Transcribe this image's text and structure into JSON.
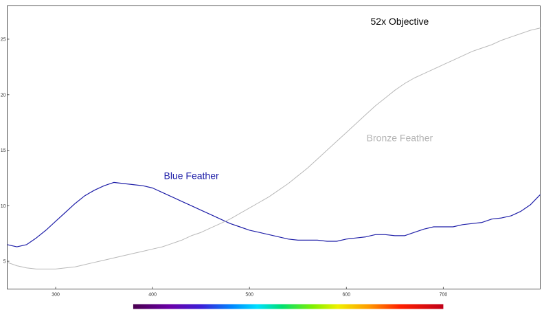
{
  "chart_data": {
    "type": "line",
    "title": "",
    "xlabel": "",
    "ylabel": "",
    "xlim": [
      250,
      800
    ],
    "ylim": [
      2.5,
      28
    ],
    "grid": false,
    "x_ticks": [
      300,
      400,
      500,
      600,
      700
    ],
    "y_ticks": [
      5,
      10,
      15,
      20,
      25
    ],
    "x_tick_labels": [
      "300",
      "400",
      "500",
      "600",
      "700"
    ],
    "y_tick_labels": [
      "5",
      "10",
      "15",
      "20",
      "25"
    ],
    "annotations": [
      {
        "text": "52x Objective",
        "x": 655,
        "y": 26.3,
        "color": "#000000"
      },
      {
        "text": "Blue Feather",
        "x": 440,
        "y": 12.4,
        "color": "#1a1aa6"
      },
      {
        "text": "Bronze Feather",
        "x": 655,
        "y": 15.8,
        "color": "#b4b4b4"
      }
    ],
    "spectrum_bar": {
      "from": 380,
      "to": 700
    },
    "series": [
      {
        "color": "#1f1fa8",
        "x": [
          250,
          260,
          270,
          280,
          290,
          300,
          310,
          320,
          330,
          340,
          350,
          360,
          370,
          380,
          390,
          400,
          410,
          420,
          430,
          440,
          450,
          460,
          470,
          480,
          490,
          500,
          510,
          520,
          530,
          540,
          550,
          560,
          570,
          580,
          590,
          600,
          610,
          620,
          630,
          640,
          650,
          660,
          670,
          680,
          690,
          700,
          710,
          720,
          730,
          740,
          750,
          760,
          770,
          780,
          790,
          800
        ],
        "values": [
          6.5,
          6.3,
          6.5,
          7.1,
          7.8,
          8.6,
          9.4,
          10.2,
          10.9,
          11.4,
          11.8,
          12.1,
          12.0,
          11.9,
          11.8,
          11.6,
          11.2,
          10.8,
          10.4,
          10.0,
          9.6,
          9.2,
          8.8,
          8.4,
          8.1,
          7.8,
          7.6,
          7.4,
          7.2,
          7.0,
          6.9,
          6.9,
          6.9,
          6.8,
          6.8,
          7.0,
          7.1,
          7.2,
          7.4,
          7.4,
          7.3,
          7.3,
          7.6,
          7.9,
          8.1,
          8.1,
          8.1,
          8.3,
          8.4,
          8.5,
          8.8,
          8.9,
          9.1,
          9.5,
          10.1,
          11.0
        ]
      },
      {
        "color": "#b8b8b8",
        "x": [
          250,
          260,
          270,
          280,
          290,
          300,
          310,
          320,
          330,
          340,
          350,
          360,
          370,
          380,
          390,
          400,
          410,
          420,
          430,
          440,
          450,
          460,
          470,
          480,
          490,
          500,
          510,
          520,
          530,
          540,
          550,
          560,
          570,
          580,
          590,
          600,
          610,
          620,
          630,
          640,
          650,
          660,
          670,
          680,
          690,
          700,
          710,
          720,
          730,
          740,
          750,
          760,
          770,
          780,
          790,
          800
        ],
        "values": [
          4.9,
          4.6,
          4.4,
          4.3,
          4.3,
          4.3,
          4.4,
          4.5,
          4.7,
          4.9,
          5.1,
          5.3,
          5.5,
          5.7,
          5.9,
          6.1,
          6.3,
          6.6,
          6.9,
          7.3,
          7.6,
          8.0,
          8.4,
          8.8,
          9.3,
          9.8,
          10.3,
          10.8,
          11.4,
          12.0,
          12.7,
          13.4,
          14.2,
          15.0,
          15.8,
          16.6,
          17.4,
          18.2,
          19.0,
          19.7,
          20.4,
          21.0,
          21.5,
          21.9,
          22.3,
          22.7,
          23.1,
          23.5,
          23.9,
          24.2,
          24.5,
          24.9,
          25.2,
          25.5,
          25.8,
          26.0
        ]
      }
    ]
  }
}
